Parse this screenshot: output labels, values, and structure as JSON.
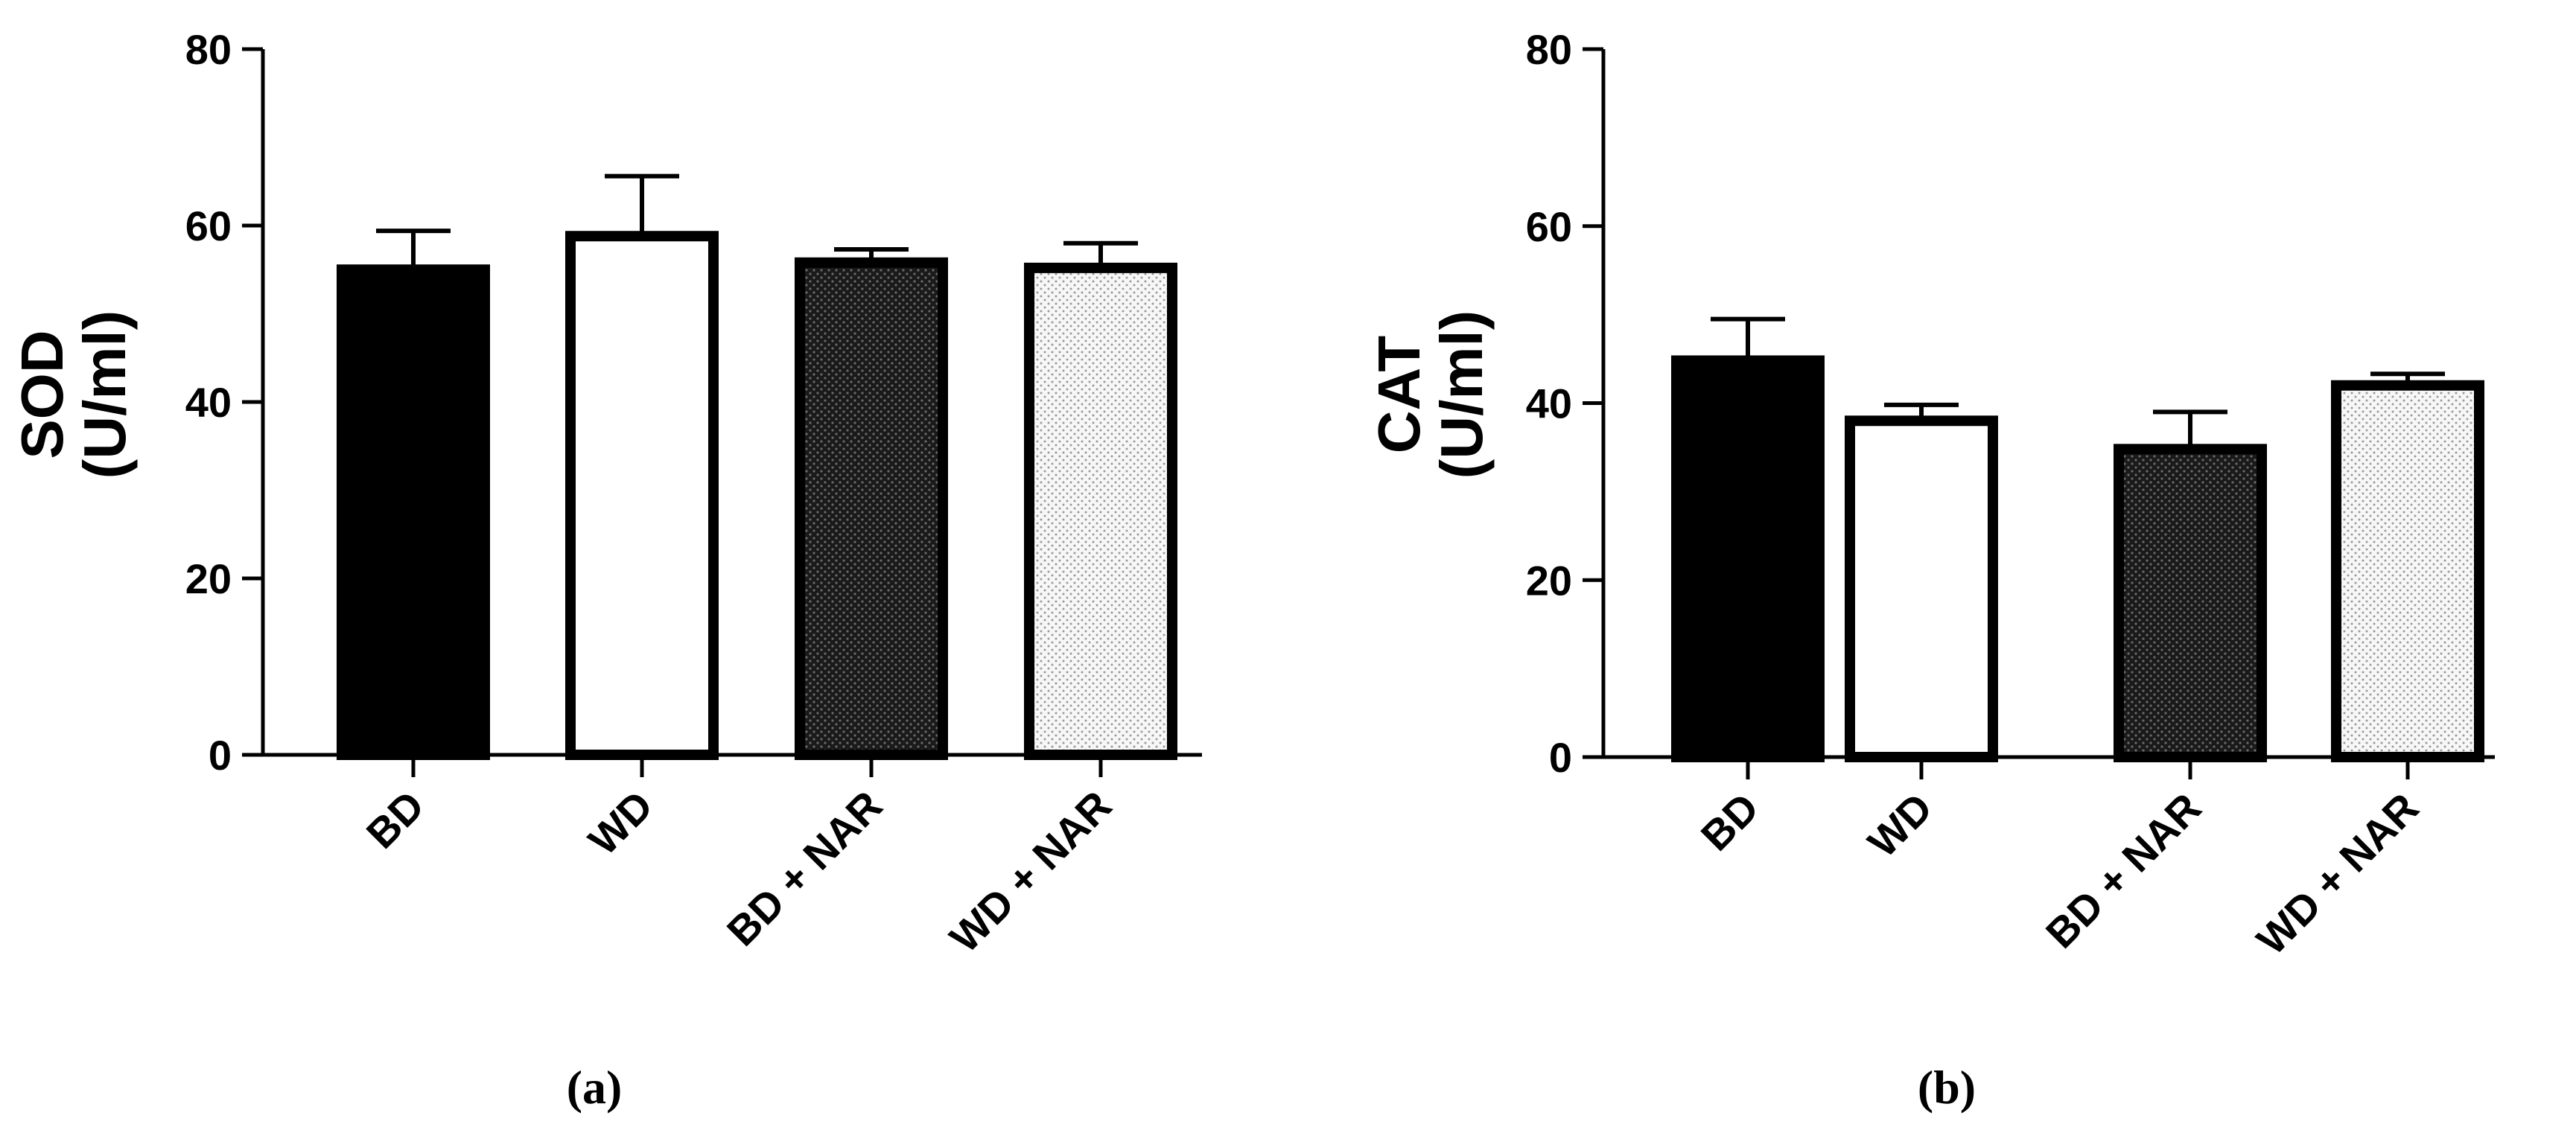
{
  "chart_data": [
    {
      "type": "bar",
      "panel_label": "(a)",
      "ylabel_line1": "SOD",
      "ylabel_line2": "(U/ml)",
      "categories": [
        "BD",
        "WD",
        "BD + NAR",
        "WD + NAR"
      ],
      "values": [
        55,
        58.8,
        55.8,
        55.2
      ],
      "errors": [
        4.4,
        6.8,
        1.5,
        2.8
      ],
      "ylim": [
        0,
        80
      ],
      "yticks": [
        "0",
        "20",
        "40",
        "60",
        "80"
      ],
      "grid": false
    },
    {
      "type": "bar",
      "panel_label": "(b)",
      "ylabel_line1": "CAT",
      "ylabel_line2": "(U/ml)",
      "categories": [
        "BD",
        "WD",
        "BD + NAR",
        "WD + NAR"
      ],
      "values": [
        44.8,
        38,
        34.8,
        42
      ],
      "errors": [
        4.7,
        1.8,
        4.2,
        1.3
      ],
      "ylim": [
        0,
        80
      ],
      "yticks": [
        "0",
        "20",
        "40",
        "60",
        "80"
      ],
      "grid": false
    }
  ],
  "bar_styles": [
    "solid-black",
    "white",
    "dense-dots",
    "light-dots"
  ],
  "colors": {
    "ink": "#000000",
    "paper": "#ffffff"
  }
}
